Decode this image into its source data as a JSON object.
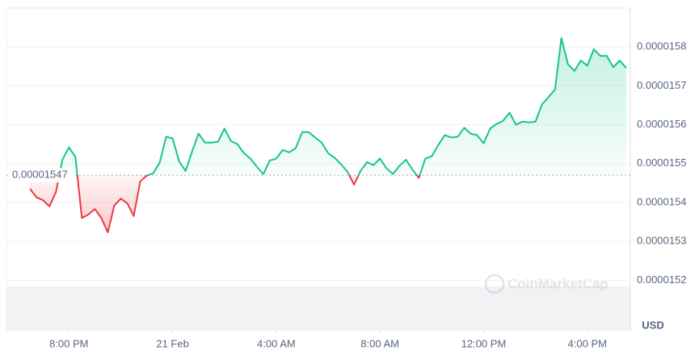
{
  "chart_data": {
    "type": "line",
    "x": [
      18.5,
      18.75,
      19,
      19.25,
      19.5,
      19.75,
      20,
      20.25,
      20.5,
      20.75,
      21,
      21.25,
      21.5,
      21.75,
      22,
      22.25,
      22.5,
      22.75,
      23,
      23.25,
      23.5,
      23.75,
      24,
      24.25,
      24.5,
      24.75,
      25,
      25.25,
      25.5,
      25.75,
      26,
      26.25,
      26.5,
      26.75,
      27,
      27.25,
      27.5,
      27.75,
      28,
      28.25,
      28.5,
      28.75,
      29,
      29.25,
      29.5,
      29.75,
      30,
      30.25,
      30.5,
      30.75,
      31,
      31.25,
      31.5,
      31.75,
      32,
      32.25,
      32.5,
      32.75,
      33,
      33.25,
      33.5,
      33.75,
      34,
      34.25,
      34.5,
      34.75,
      35,
      35.25,
      35.5,
      35.75,
      36,
      36.25,
      36.5,
      36.75,
      37,
      37.25,
      37.5,
      37.75,
      38,
      38.25,
      38.5,
      38.75,
      39,
      39.25,
      39.5,
      39.75,
      40,
      40.25,
      40.5,
      40.75,
      41,
      41.25,
      41.5
    ],
    "values": [
      1.5435e-05,
      1.5413e-05,
      1.5406e-05,
      1.539e-05,
      1.5427e-05,
      1.551e-05,
      1.5542e-05,
      1.5517e-05,
      1.536e-05,
      1.5369e-05,
      1.5383e-05,
      1.536e-05,
      1.5323e-05,
      1.5392e-05,
      1.541e-05,
      1.5398e-05,
      1.5365e-05,
      1.5454e-05,
      1.5469e-05,
      1.5475e-05,
      1.5502e-05,
      1.5569e-05,
      1.5565e-05,
      1.5506e-05,
      1.5481e-05,
      1.5531e-05,
      1.5577e-05,
      1.5554e-05,
      1.5554e-05,
      1.5556e-05,
      1.559e-05,
      1.5558e-05,
      1.555e-05,
      1.5527e-05,
      1.5513e-05,
      1.5492e-05,
      1.5473e-05,
      1.5508e-05,
      1.5513e-05,
      1.5535e-05,
      1.5529e-05,
      1.554e-05,
      1.5581e-05,
      1.5581e-05,
      1.5567e-05,
      1.5554e-05,
      1.5527e-05,
      1.5515e-05,
      1.5498e-05,
      1.5479e-05,
      1.5446e-05,
      1.5481e-05,
      1.5504e-05,
      1.5496e-05,
      1.5513e-05,
      1.5488e-05,
      1.5473e-05,
      1.5494e-05,
      1.551e-05,
      1.5485e-05,
      1.5463e-05,
      1.5513e-05,
      1.5519e-05,
      1.5548e-05,
      1.5573e-05,
      1.5567e-05,
      1.5569e-05,
      1.5592e-05,
      1.5577e-05,
      1.5573e-05,
      1.5552e-05,
      1.559e-05,
      1.5602e-05,
      1.561e-05,
      1.5631e-05,
      1.56e-05,
      1.5608e-05,
      1.5606e-05,
      1.5608e-05,
      1.5652e-05,
      1.5671e-05,
      1.569e-05,
      1.5823e-05,
      1.5756e-05,
      1.5738e-05,
      1.5765e-05,
      1.5752e-05,
      1.5794e-05,
      1.5777e-05,
      1.5777e-05,
      1.5748e-05,
      1.5765e-05,
      1.5746e-05
    ],
    "baseline": 1.547e-05,
    "color_up": "#16c784",
    "color_down": "#ea3943",
    "xlim": [
      17.59,
      41.66
    ],
    "xticks": [
      {
        "value": 20,
        "label": "8:00 PM"
      },
      {
        "value": 24,
        "label": "21 Feb"
      },
      {
        "value": 28,
        "label": "4:00 AM"
      },
      {
        "value": 32,
        "label": "8:00 AM"
      },
      {
        "value": 36,
        "label": "12:00 PM"
      },
      {
        "value": 40,
        "label": "4:00 PM"
      }
    ],
    "ylim": [
      1.507e-05,
      1.59e-05
    ],
    "yticks": [
      1.52e-05,
      1.53e-05,
      1.54e-05,
      1.55e-05,
      1.56e-05,
      1.57e-05,
      1.58e-05
    ],
    "y_unit": "USD",
    "watermark": "CoinMarketCap",
    "grid": true
  }
}
